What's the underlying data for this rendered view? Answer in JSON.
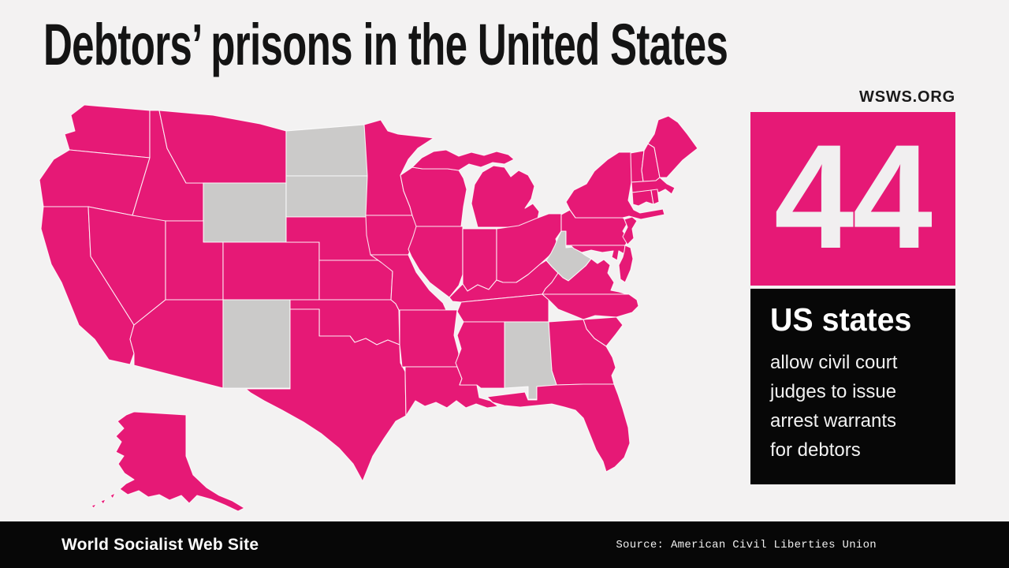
{
  "title": "Debtors’ prisons in the United States",
  "brand": {
    "site_tag": "WSWS.ORG",
    "site_name": "World Socialist Web Site"
  },
  "infobox": {
    "number": "44",
    "label": "US states",
    "description_lines": [
      "allow civil court",
      "judges to issue",
      "arrest warrants",
      "for debtors"
    ]
  },
  "footer": {
    "source": "Source: American Civil Liberties Union"
  },
  "map": {
    "type": "choropleth-us-states",
    "highlight_color": "#e61976",
    "excluded_color": "#cbcac9",
    "border_color": "#ffffff",
    "background_color": "#f3f2f2",
    "highlighted_count": 44,
    "excluded_states": [
      "North Dakota",
      "South Dakota",
      "Wyoming",
      "New Mexico",
      "West Virginia",
      "Alabama"
    ]
  }
}
